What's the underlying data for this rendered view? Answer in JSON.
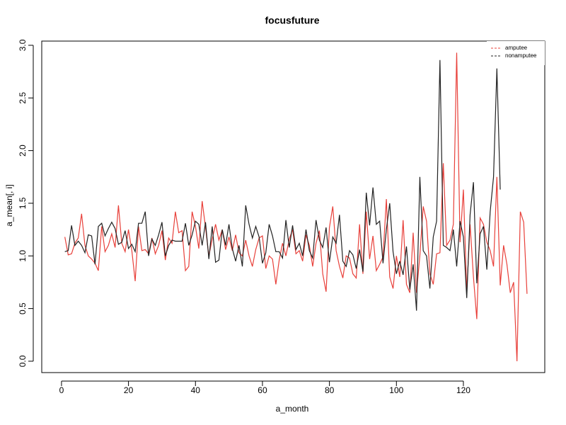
{
  "chart_data": {
    "type": "line",
    "title": "focusfuture",
    "x_label": "a_month",
    "y_label": "a_mean[, i]",
    "xlim": [
      -5.9,
      144.3
    ],
    "xticks": [
      0,
      20,
      40,
      60,
      80,
      100,
      120
    ],
    "ylim": [
      -0.108,
      3.04
    ],
    "yticks": [
      {
        "value": 0,
        "label": "0.0"
      },
      0.5,
      {
        "value": 1,
        "label": "1.0"
      },
      1.5,
      {
        "value": 2,
        "label": "2.0"
      },
      2.5,
      {
        "value": 3,
        "label": "3.0"
      }
    ],
    "legend_position": "top-right",
    "series": [
      {
        "name": "amputee",
        "color": "#e8403a",
        "values": [
          1.18,
          1.01,
          1.02,
          1.12,
          1.17,
          1.4,
          1.1,
          1.0,
          0.97,
          0.93,
          0.86,
          1.28,
          1.04,
          1.1,
          1.21,
          1.08,
          1.48,
          1.12,
          1.04,
          1.25,
          1.05,
          0.76,
          1.28,
          1.05,
          1.06,
          1.02,
          1.17,
          1.02,
          1.1,
          1.24,
          0.96,
          1.17,
          1.12,
          1.42,
          1.22,
          1.24,
          0.86,
          0.9,
          1.42,
          1.28,
          1.07,
          1.52,
          1.27,
          1.0,
          1.16,
          1.3,
          1.15,
          1.25,
          1.06,
          1.18,
          1.05,
          1.2,
          1.03,
          1.0,
          1.15,
          1.0,
          0.9,
          1.06,
          1.17,
          1.19,
          0.88,
          1.0,
          0.97,
          0.73,
          0.96,
          1.12,
          1.0,
          1.16,
          1.25,
          1.02,
          1.05,
          0.95,
          1.2,
          1.1,
          0.9,
          1.12,
          1.24,
          0.83,
          0.66,
          1.27,
          1.47,
          1.05,
          0.9,
          0.79,
          1.0,
          0.98,
          0.83,
          0.79,
          1.3,
          0.83,
          1.42,
          0.97,
          1.19,
          0.86,
          0.92,
          0.99,
          1.54,
          0.8,
          0.69,
          1.0,
          0.8,
          1.34,
          0.73,
          0.65,
          1.22,
          0.65,
          1.0,
          1.47,
          1.33,
          0.83,
          0.73,
          1.02,
          1.03,
          1.88,
          1.1,
          1.15,
          1.3,
          2.93,
          1.13,
          1.63,
          0.66,
          1.3,
          0.8,
          0.4,
          1.36,
          1.3,
          1.13,
          1.05,
          0.9,
          1.75,
          0.72,
          1.1,
          0.92,
          0.65,
          0.75,
          0.0,
          1.42,
          1.32,
          0.64
        ]
      },
      {
        "name": "nonamputee",
        "color": "#222222",
        "values": [
          1.04,
          1.05,
          1.29,
          1.1,
          1.14,
          1.1,
          1.03,
          1.2,
          1.19,
          0.92,
          1.28,
          1.31,
          1.19,
          1.26,
          1.32,
          1.26,
          1.11,
          1.13,
          1.24,
          1.07,
          1.11,
          1.04,
          1.31,
          1.31,
          1.42,
          1.0,
          1.16,
          1.1,
          1.2,
          1.32,
          1.0,
          1.1,
          1.15,
          1.14,
          1.14,
          1.14,
          1.31,
          1.1,
          1.2,
          1.33,
          1.3,
          1.1,
          1.32,
          0.97,
          1.28,
          0.94,
          0.96,
          1.25,
          1.1,
          1.3,
          1.07,
          0.95,
          1.1,
          0.9,
          1.48,
          1.3,
          1.17,
          1.28,
          1.18,
          0.93,
          1.03,
          1.3,
          1.19,
          1.04,
          1.04,
          0.98,
          1.34,
          1.08,
          1.29,
          1.06,
          1.12,
          1.0,
          1.25,
          1.05,
          0.98,
          1.34,
          1.15,
          1.08,
          1.27,
          0.94,
          1.18,
          1.12,
          1.39,
          0.95,
          0.9,
          1.05,
          1.01,
          0.88,
          1.06,
          0.85,
          1.6,
          1.29,
          1.65,
          1.3,
          1.33,
          0.93,
          1.25,
          1.5,
          1.04,
          0.83,
          0.95,
          0.82,
          1.09,
          0.68,
          0.92,
          0.48,
          1.75,
          1.05,
          1.0,
          0.69,
          1.18,
          1.33,
          2.86,
          1.1,
          1.08,
          1.05,
          1.25,
          0.9,
          1.33,
          1.18,
          0.6,
          1.39,
          1.7,
          0.74,
          1.21,
          1.28,
          0.87,
          1.42,
          1.75,
          2.78,
          1.63
        ]
      }
    ]
  }
}
